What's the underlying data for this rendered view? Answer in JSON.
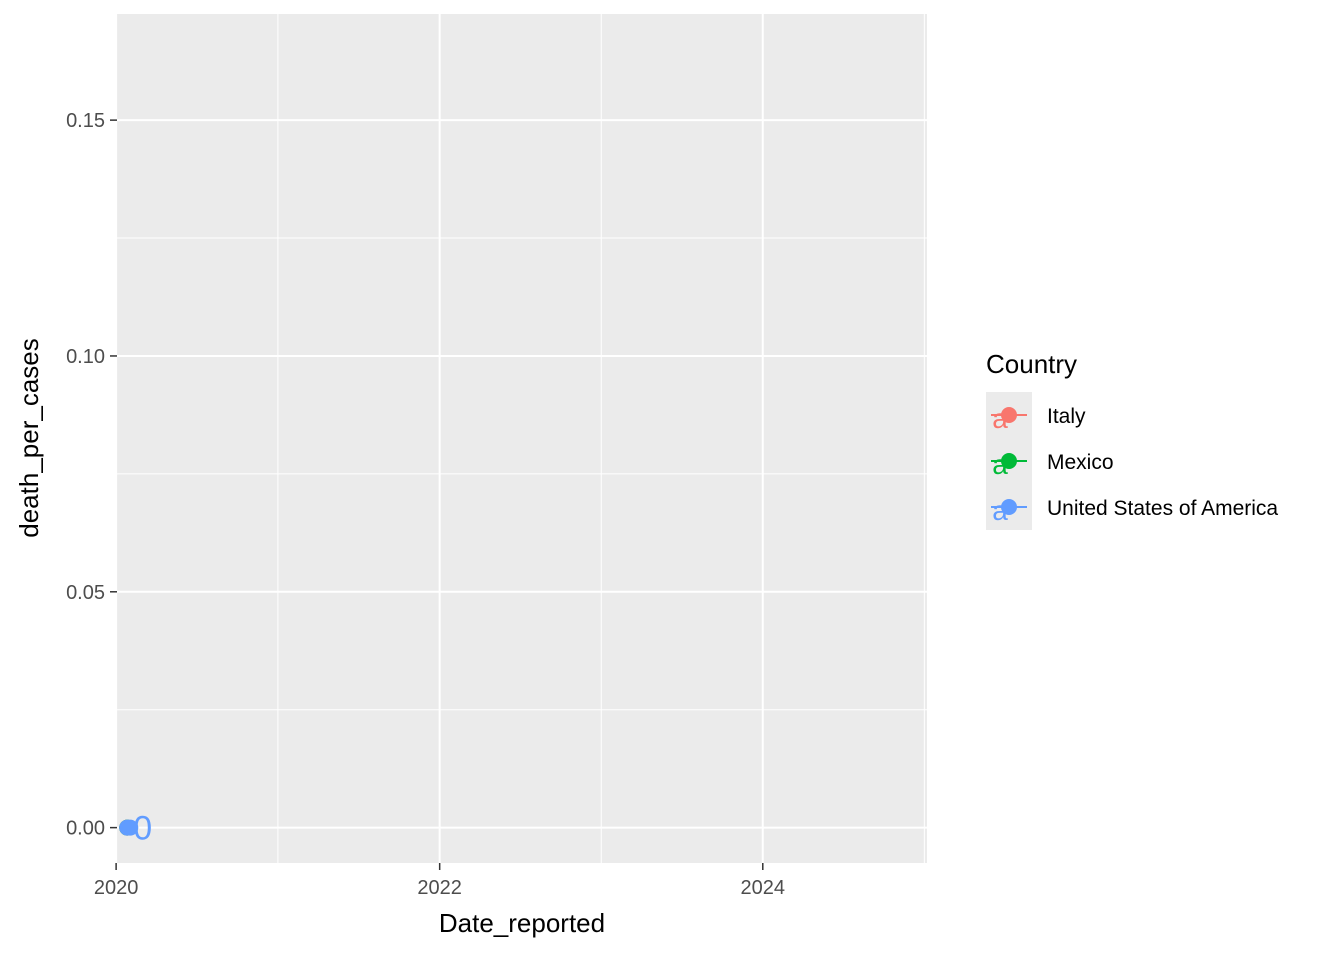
{
  "chart_data": {
    "type": "scatter",
    "title": "",
    "xlabel": "Date_reported",
    "ylabel": "death_per_cases",
    "xlim": [
      "2020-01-03",
      "2025-01-06"
    ],
    "ylim": [
      -0.0075,
      0.1725
    ],
    "x_ticks": [
      "2020",
      "2022",
      "2024"
    ],
    "x_tick_dates": [
      "2020-01-01",
      "2022-01-01",
      "2024-01-01"
    ],
    "y_ticks": [
      "0.00",
      "0.05",
      "0.10",
      "0.15"
    ],
    "y_tick_values": [
      0.0,
      0.05,
      0.1,
      0.15
    ],
    "grid": true,
    "legend": {
      "title": "Country",
      "position": "right"
    },
    "series": [
      {
        "name": "Italy",
        "color": "#F8766D",
        "points": [
          {
            "x": "2020-01-26",
            "y": 0.0
          }
        ]
      },
      {
        "name": "Mexico",
        "color": "#00BA38",
        "points": [
          {
            "x": "2020-01-26",
            "y": 0.0
          }
        ]
      },
      {
        "name": "United States of America",
        "color": "#619CFF",
        "points": [
          {
            "x": "2020-01-26",
            "y": 0.0
          },
          {
            "x": "2020-02-02",
            "y": 0.0
          }
        ],
        "text_labels": [
          {
            "x": "2020-03-01",
            "y": 0.0,
            "text": "0"
          }
        ]
      }
    ]
  }
}
